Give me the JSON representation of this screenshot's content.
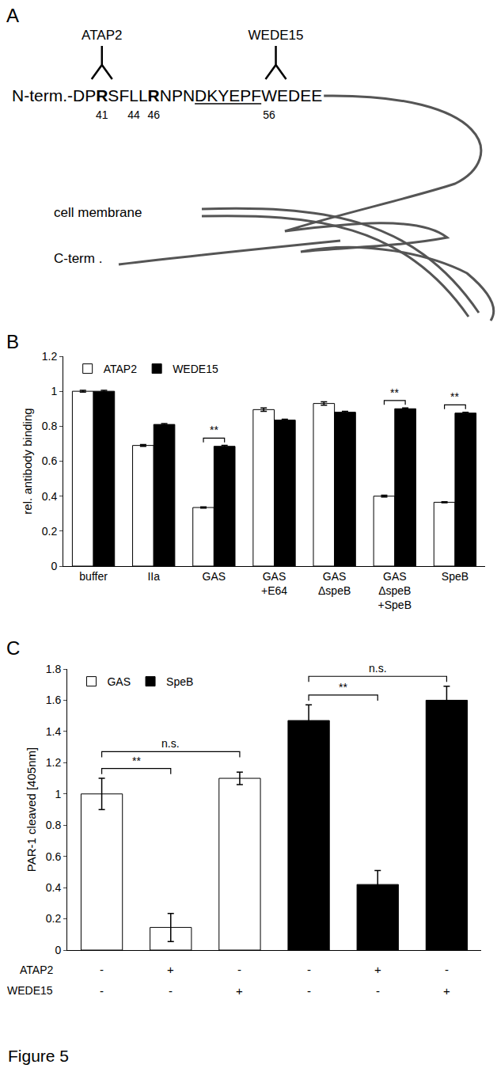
{
  "panels": [
    "A",
    "B",
    "C"
  ],
  "figure_label": "Figure 5",
  "diagram": {
    "prefix": "N-term.-",
    "sequence": "DPRSFLLRNPNDKYEPFWEDEE",
    "bold_residues": [
      2,
      7
    ],
    "underline": [
      11,
      16
    ],
    "numbers": [
      {
        "residue": 2,
        "number": 41
      },
      {
        "residue": 5,
        "number": 44
      },
      {
        "residue": 7,
        "number": 46
      },
      {
        "residue": 17,
        "number": 56
      }
    ],
    "antibodies": [
      {
        "label": "ATAP2",
        "residue": 2
      },
      {
        "label": "WEDE15",
        "residue": 17.5
      }
    ],
    "membrane_label": "cell membrane",
    "c_term_label": "C-term ."
  },
  "chart_data": [
    {
      "type": "bar",
      "ylabel": "rel. antibody binding",
      "categories": [
        "buffer",
        "IIa",
        "GAS",
        "GAS\n+E64",
        "GAS\nΔspeB",
        "GAS\nΔspeB\n+SpeB",
        "SpeB"
      ],
      "series": [
        {
          "name": "ATAP2",
          "color": "#ffffff",
          "values": [
            1.0,
            0.69,
            0.335,
            0.895,
            0.93,
            0.4,
            0.365
          ],
          "errors": [
            0.005,
            0.005,
            0.003,
            0.01,
            0.01,
            0.005,
            0.003
          ]
        },
        {
          "name": "WEDE15",
          "color": "#000000",
          "values": [
            1.0,
            0.81,
            0.685,
            0.835,
            0.88,
            0.9,
            0.875
          ],
          "errors": [
            0.005,
            0.005,
            0.005,
            0.005,
            0.005,
            0.005,
            0.005
          ]
        }
      ],
      "ylim": [
        0,
        1.2
      ],
      "yticks": [
        0,
        0.2,
        0.4,
        0.6,
        0.8,
        1,
        1.2
      ],
      "grid": false,
      "legend": "top left",
      "significance": [
        {
          "from": 2,
          "to": 2,
          "label": "**"
        },
        {
          "from": 5,
          "to": 5,
          "label": "**"
        },
        {
          "from": 6,
          "to": 6,
          "label": "**"
        }
      ]
    },
    {
      "type": "bar",
      "ylabel": "PAR-1 cleaved [405nm]",
      "categories": [
        null,
        null,
        null,
        null,
        null,
        null
      ],
      "tick_labels": "y",
      "series": [
        {
          "name": "GAS",
          "color": "#ffffff",
          "values": [
            1.0,
            0.145,
            1.1,
            null,
            null,
            null
          ],
          "errors": [
            0.1,
            0.09,
            0.04,
            null,
            null,
            null
          ]
        },
        {
          "name": "SpeB",
          "color": "#000000",
          "values": [
            null,
            null,
            null,
            1.47,
            0.42,
            1.6
          ],
          "errors": [
            null,
            null,
            null,
            0.1,
            0.09,
            0.09
          ]
        }
      ],
      "ylim": [
        0,
        1.8
      ],
      "yticks": [
        0,
        0.2,
        0.4,
        0.6,
        0.8,
        1,
        1.2,
        1.4,
        1.6,
        1.8
      ],
      "grid": false,
      "legend": "top left",
      "significance": [
        {
          "from": 0,
          "to": 1,
          "label": "**"
        },
        {
          "from": 0,
          "to": 2,
          "label": "n.s."
        },
        {
          "from": 3,
          "to": 4,
          "label": "**"
        },
        {
          "from": 3,
          "to": 5,
          "label": "n.s."
        }
      ],
      "conditions": [
        {
          "label": "ATAP2",
          "values": [
            "-",
            "+",
            "-",
            "-",
            "+",
            "-"
          ]
        },
        {
          "label": "WEDE15",
          "values": [
            "-",
            "-",
            "+",
            "-",
            "-",
            "+"
          ]
        }
      ]
    }
  ]
}
